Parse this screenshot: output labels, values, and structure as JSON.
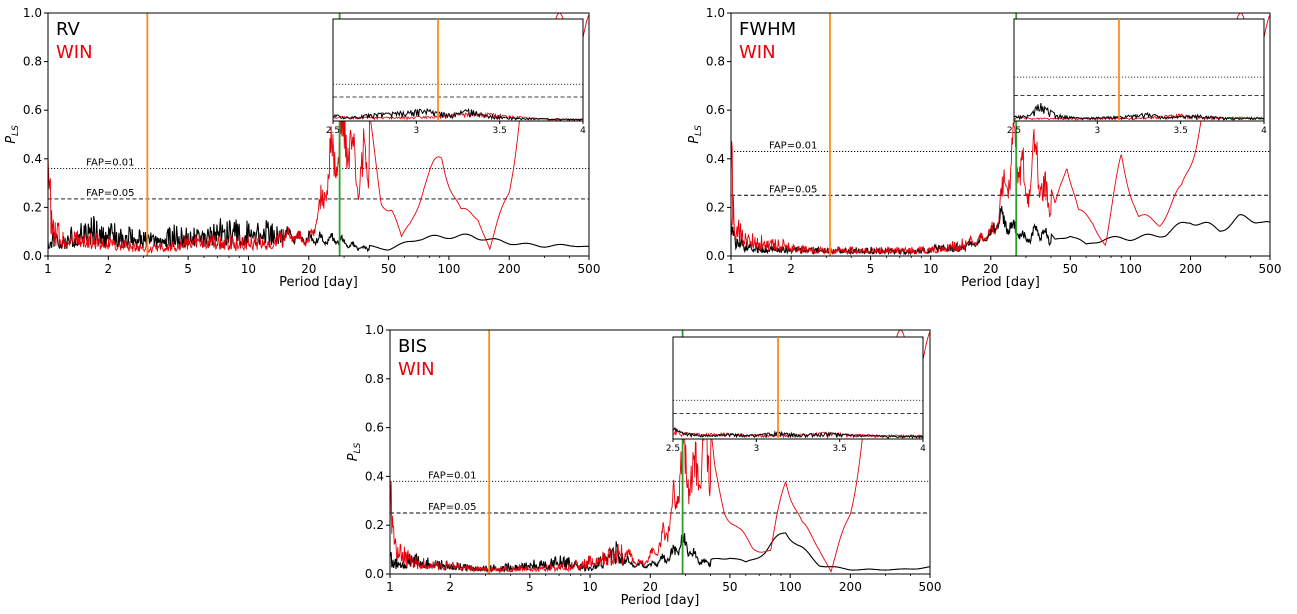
{
  "chart_data": [
    {
      "type": "line",
      "panel": "RV",
      "title": "",
      "xlabel": "Period [day]",
      "ylabel": "P_LS",
      "xscale": "log",
      "xlim": [
        1,
        500
      ],
      "ylim": [
        0,
        1
      ],
      "xticks": [
        1,
        2,
        5,
        10,
        20,
        50,
        100,
        200,
        500
      ],
      "xtick_labels": [
        "1",
        "2",
        "5",
        "10",
        "20",
        "50",
        "100",
        "200",
        "500"
      ],
      "yticks": [
        0.0,
        0.2,
        0.4,
        0.6,
        0.8,
        1.0
      ],
      "ytick_labels": [
        "0.0",
        "0.2",
        "0.4",
        "0.6",
        "0.8",
        "1.0"
      ],
      "text_labels": [
        {
          "text": "RV",
          "color": "#000000"
        },
        {
          "text": "WIN",
          "color": "#e8000b"
        }
      ],
      "fap_lines": [
        {
          "label": "FAP=0.01",
          "value": 0.36,
          "style": "dotted"
        },
        {
          "label": "FAP=0.05",
          "value": 0.235,
          "style": "dashed"
        }
      ],
      "vertical_markers": [
        {
          "period": 3.13,
          "color": "#ff8c1a"
        },
        {
          "period": 28.5,
          "color": "#2ca02c"
        }
      ],
      "series": [
        {
          "color": "#000000",
          "peaks": [
            [
              1.01,
              0.07
            ],
            [
              1.05,
              0.13
            ],
            [
              1.2,
              0.1
            ],
            [
              1.6,
              0.18
            ],
            [
              2.3,
              0.13
            ],
            [
              3.6,
              0.12
            ],
            [
              6,
              0.15
            ],
            [
              7.2,
              0.16
            ],
            [
              13.5,
              0.16
            ],
            [
              17,
              0.11
            ],
            [
              27,
              0.1
            ],
            [
              30,
              0.08
            ],
            [
              36,
              0.05
            ],
            [
              50,
              0.03
            ],
            [
              70,
              0.08
            ],
            [
              100,
              0.09
            ],
            [
              130,
              0.09
            ],
            [
              200,
              0.06
            ],
            [
              300,
              0.045
            ],
            [
              420,
              0.05
            ],
            [
              500,
              0.04
            ]
          ]
        },
        {
          "color": "#e8000b",
          "peaks": [
            [
              1.0,
              0.7
            ],
            [
              1.015,
              0.48
            ],
            [
              1.05,
              0.17
            ],
            [
              1.25,
              0.12
            ],
            [
              1.5,
              0.12
            ],
            [
              2.0,
              0.09
            ],
            [
              3,
              0.05
            ],
            [
              4,
              0.07
            ],
            [
              6,
              0.1
            ],
            [
              10,
              0.09
            ],
            [
              13,
              0.1
            ],
            [
              17,
              0.13
            ],
            [
              20,
              0.08
            ],
            [
              23.5,
              0.35
            ],
            [
              26.5,
              0.6
            ],
            [
              30.5,
              0.78
            ],
            [
              35,
              0.45
            ],
            [
              40,
              0.6
            ],
            [
              46,
              0.25
            ],
            [
              52,
              0.22
            ],
            [
              58,
              0.08
            ],
            [
              64,
              0.15
            ],
            [
              75,
              0.32
            ],
            [
              92,
              0.45
            ],
            [
              115,
              0.2
            ],
            [
              140,
              0.18
            ],
            [
              160,
              0.03
            ],
            [
              200,
              0.32
            ],
            [
              240,
              0.8
            ],
            [
              260,
              1.0
            ]
          ]
        }
      ],
      "inset": {
        "xlim": [
          2.5,
          4
        ],
        "xticks": [
          2.5,
          3,
          3.5,
          4
        ],
        "xtick_labels": [
          "2.5",
          "3",
          "3.5",
          "4"
        ],
        "marker": 3.13,
        "fap01": 0.36,
        "fap05": 0.235,
        "black_peaks": [
          [
            2.53,
            0.06
          ],
          [
            2.57,
            0.03
          ],
          [
            2.65,
            0.05
          ],
          [
            2.72,
            0.07
          ],
          [
            2.88,
            0.09
          ],
          [
            3.05,
            0.12
          ],
          [
            3.13,
            0.1
          ],
          [
            3.2,
            0.07
          ],
          [
            3.32,
            0.12
          ],
          [
            3.42,
            0.06
          ],
          [
            3.6,
            0.03
          ],
          [
            3.9,
            0.02
          ]
        ],
        "red_peaks": [
          [
            2.52,
            0.05
          ],
          [
            2.62,
            0.04
          ],
          [
            2.9,
            0.04
          ],
          [
            3.1,
            0.05
          ],
          [
            3.38,
            0.09
          ],
          [
            3.48,
            0.07
          ],
          [
            3.65,
            0.04
          ],
          [
            3.8,
            0.02
          ]
        ]
      }
    },
    {
      "type": "line",
      "panel": "FWHM",
      "title": "",
      "xlabel": "Period [day]",
      "ylabel": "P_LS",
      "xscale": "log",
      "xlim": [
        1,
        500
      ],
      "ylim": [
        0,
        1
      ],
      "xticks": [
        1,
        2,
        5,
        10,
        20,
        50,
        100,
        200,
        500
      ],
      "xtick_labels": [
        "1",
        "2",
        "5",
        "10",
        "20",
        "50",
        "100",
        "200",
        "500"
      ],
      "yticks": [
        0.0,
        0.2,
        0.4,
        0.6,
        0.8,
        1.0
      ],
      "ytick_labels": [
        "0.0",
        "0.2",
        "0.4",
        "0.6",
        "0.8",
        "1.0"
      ],
      "text_labels": [
        {
          "text": "FWHM",
          "color": "#000000"
        },
        {
          "text": "WIN",
          "color": "#e8000b"
        }
      ],
      "fap_lines": [
        {
          "label": "FAP=0.01",
          "value": 0.43,
          "style": "dotted"
        },
        {
          "label": "FAP=0.05",
          "value": 0.25,
          "style": "dashed"
        }
      ],
      "vertical_markers": [
        {
          "period": 3.13,
          "color": "#ff8c1a"
        },
        {
          "period": 26.8,
          "color": "#2ca02c"
        }
      ],
      "series": [
        {
          "color": "#000000",
          "peaks": [
            [
              1.01,
              0.22
            ],
            [
              1.05,
              0.12
            ],
            [
              1.2,
              0.06
            ],
            [
              1.5,
              0.05
            ],
            [
              2.5,
              0.04
            ],
            [
              5,
              0.04
            ],
            [
              8,
              0.03
            ],
            [
              12,
              0.06
            ],
            [
              16,
              0.07
            ],
            [
              20,
              0.12
            ],
            [
              22,
              0.24
            ],
            [
              24,
              0.2
            ],
            [
              30,
              0.1
            ],
            [
              35,
              0.15
            ],
            [
              42,
              0.07
            ],
            [
              50,
              0.1
            ],
            [
              60,
              0.05
            ],
            [
              75,
              0.08
            ],
            [
              100,
              0.08
            ],
            [
              150,
              0.1
            ],
            [
              200,
              0.165
            ],
            [
              280,
              0.12
            ],
            [
              350,
              0.17
            ],
            [
              440,
              0.17
            ],
            [
              500,
              0.14
            ]
          ]
        },
        {
          "color": "#e8000b",
          "peaks": [
            [
              1.0,
              0.72
            ],
            [
              1.02,
              0.48
            ],
            [
              1.05,
              0.22
            ],
            [
              1.2,
              0.12
            ],
            [
              1.6,
              0.08
            ],
            [
              2.5,
              0.04
            ],
            [
              5,
              0.04
            ],
            [
              9,
              0.04
            ],
            [
              14,
              0.07
            ],
            [
              18,
              0.1
            ],
            [
              21,
              0.17
            ],
            [
              24,
              0.45
            ],
            [
              27,
              0.7
            ],
            [
              30,
              0.35
            ],
            [
              33,
              0.65
            ],
            [
              37,
              0.38
            ],
            [
              42,
              0.22
            ],
            [
              48,
              0.45
            ],
            [
              55,
              0.2
            ],
            [
              65,
              0.15
            ],
            [
              75,
              0.05
            ],
            [
              90,
              0.45
            ],
            [
              110,
              0.18
            ],
            [
              140,
              0.15
            ],
            [
              180,
              0.3
            ],
            [
              230,
              0.65
            ],
            [
              260,
              1.0
            ]
          ]
        }
      ],
      "inset": {
        "xlim": [
          2.5,
          4
        ],
        "xticks": [
          2.5,
          3,
          3.5,
          4
        ],
        "xtick_labels": [
          "2.5",
          "3",
          "3.5",
          "4"
        ],
        "marker": 3.13,
        "fap01": 0.43,
        "fap05": 0.25,
        "black_peaks": [
          [
            2.52,
            0.05
          ],
          [
            2.6,
            0.06
          ],
          [
            2.65,
            0.19
          ],
          [
            2.75,
            0.07
          ],
          [
            2.9,
            0.03
          ],
          [
            3.15,
            0.05
          ],
          [
            3.3,
            0.08
          ],
          [
            3.42,
            0.04
          ],
          [
            3.6,
            0.06
          ],
          [
            3.8,
            0.03
          ]
        ],
        "red_peaks": [
          [
            2.52,
            0.04
          ],
          [
            2.6,
            0.03
          ],
          [
            2.85,
            0.03
          ],
          [
            3.0,
            0.03
          ],
          [
            3.25,
            0.03
          ],
          [
            3.5,
            0.07
          ],
          [
            3.65,
            0.03
          ],
          [
            3.85,
            0.04
          ]
        ]
      }
    },
    {
      "type": "line",
      "panel": "BIS",
      "title": "",
      "xlabel": "Period [day]",
      "ylabel": "P_LS",
      "xscale": "log",
      "xlim": [
        1,
        500
      ],
      "ylim": [
        0,
        1
      ],
      "xticks": [
        1,
        2,
        5,
        10,
        20,
        50,
        100,
        200,
        500
      ],
      "xtick_labels": [
        "1",
        "2",
        "5",
        "10",
        "20",
        "50",
        "100",
        "200",
        "500"
      ],
      "yticks": [
        0.0,
        0.2,
        0.4,
        0.6,
        0.8,
        1.0
      ],
      "ytick_labels": [
        "0.0",
        "0.2",
        "0.4",
        "0.6",
        "0.8",
        "1.0"
      ],
      "text_labels": [
        {
          "text": "BIS",
          "color": "#000000"
        },
        {
          "text": "WIN",
          "color": "#e8000b"
        }
      ],
      "fap_lines": [
        {
          "label": "FAP=0.01",
          "value": 0.38,
          "style": "dotted"
        },
        {
          "label": "FAP=0.05",
          "value": 0.25,
          "style": "dashed"
        }
      ],
      "vertical_markers": [
        {
          "period": 3.13,
          "color": "#ff8c1a"
        },
        {
          "period": 29.0,
          "color": "#2ca02c"
        }
      ],
      "series": [
        {
          "color": "#000000",
          "peaks": [
            [
              1.01,
              0.12
            ],
            [
              1.05,
              0.08
            ],
            [
              1.3,
              0.09
            ],
            [
              1.6,
              0.07
            ],
            [
              2.2,
              0.05
            ],
            [
              3.5,
              0.04
            ],
            [
              7.5,
              0.08
            ],
            [
              10,
              0.04
            ],
            [
              14,
              0.15
            ],
            [
              16,
              0.06
            ],
            [
              20,
              0.05
            ],
            [
              26,
              0.12
            ],
            [
              29,
              0.2
            ],
            [
              34,
              0.09
            ],
            [
              40,
              0.06
            ],
            [
              50,
              0.08
            ],
            [
              60,
              0.05
            ],
            [
              75,
              0.1
            ],
            [
              95,
              0.2
            ],
            [
              110,
              0.13
            ],
            [
              140,
              0.04
            ],
            [
              200,
              0.02
            ],
            [
              350,
              0.02
            ],
            [
              500,
              0.03
            ]
          ]
        },
        {
          "color": "#e8000b",
          "peaks": [
            [
              1.0,
              0.62
            ],
            [
              1.02,
              0.45
            ],
            [
              1.05,
              0.18
            ],
            [
              1.3,
              0.08
            ],
            [
              2,
              0.06
            ],
            [
              3,
              0.03
            ],
            [
              5,
              0.04
            ],
            [
              8,
              0.05
            ],
            [
              14,
              0.15
            ],
            [
              18,
              0.06
            ],
            [
              22,
              0.15
            ],
            [
              26,
              0.38
            ],
            [
              29,
              0.72
            ],
            [
              33,
              0.55
            ],
            [
              37,
              0.85
            ],
            [
              42,
              0.45
            ],
            [
              47,
              0.3
            ],
            [
              55,
              0.2
            ],
            [
              65,
              0.12
            ],
            [
              80,
              0.1
            ],
            [
              95,
              0.45
            ],
            [
              115,
              0.22
            ],
            [
              140,
              0.12
            ],
            [
              160,
              0.01
            ],
            [
              200,
              0.3
            ],
            [
              240,
              0.7
            ],
            [
              260,
              1.0
            ]
          ]
        }
      ],
      "inset": {
        "xlim": [
          2.5,
          4
        ],
        "xticks": [
          2.5,
          3,
          3.5,
          4
        ],
        "xtick_labels": [
          "2.5",
          "3",
          "3.5",
          "4"
        ],
        "marker": 3.13,
        "fap01": 0.38,
        "fap05": 0.25,
        "black_peaks": [
          [
            2.51,
            0.12
          ],
          [
            2.56,
            0.06
          ],
          [
            2.7,
            0.04
          ],
          [
            2.85,
            0.05
          ],
          [
            3.0,
            0.04
          ],
          [
            3.12,
            0.07
          ],
          [
            3.28,
            0.05
          ],
          [
            3.45,
            0.06
          ],
          [
            3.6,
            0.04
          ],
          [
            3.8,
            0.03
          ]
        ],
        "red_peaks": [
          [
            2.52,
            0.08
          ],
          [
            2.6,
            0.06
          ],
          [
            2.8,
            0.06
          ],
          [
            3.05,
            0.04
          ],
          [
            3.3,
            0.05
          ],
          [
            3.42,
            0.07
          ],
          [
            3.55,
            0.05
          ],
          [
            3.75,
            0.04
          ],
          [
            3.9,
            0.04
          ]
        ]
      }
    }
  ]
}
